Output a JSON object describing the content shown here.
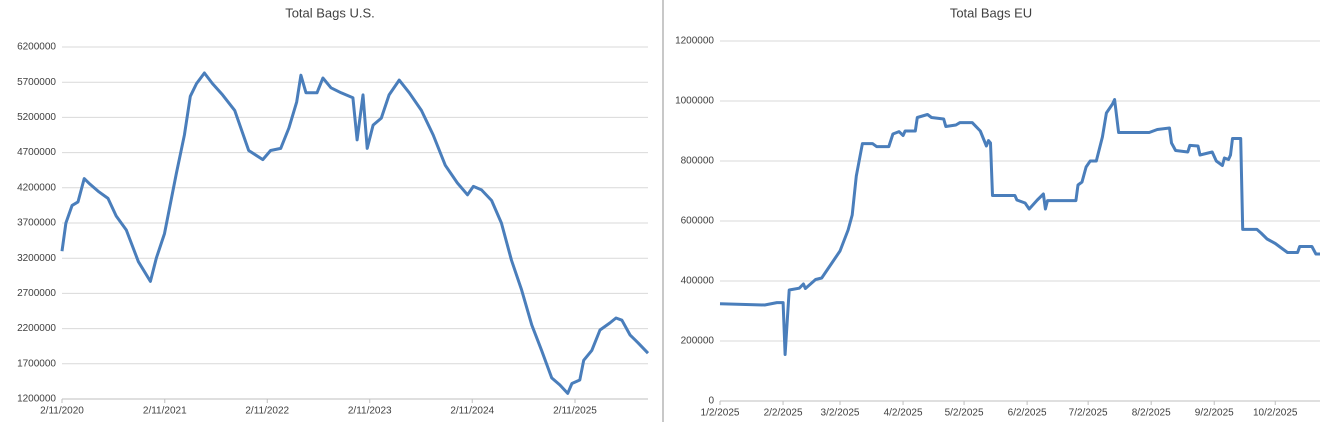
{
  "chart_data": [
    {
      "type": "line",
      "title": "Total Bags U.S.",
      "x": [
        "2/11/2020",
        "2/25/2020",
        "3/18/2020",
        "4/8/2020",
        "4/30/2020",
        "5/21/2020",
        "6/19/2020",
        "7/24/2020",
        "8/22/2020",
        "9/27/2020",
        "11/9/2020",
        "12/22/2020",
        "1/12/2021",
        "2/10/2021",
        "3/24/2021",
        "4/22/2021",
        "5/13/2021",
        "6/4/2021",
        "7/2/2021",
        "7/31/2021",
        "9/5/2021",
        "10/18/2021",
        "12/7/2021",
        "1/26/2022",
        "2/23/2022",
        "3/31/2022",
        "4/29/2022",
        "5/27/2022",
        "6/11/2022",
        "6/29/2022",
        "8/7/2022",
        "8/28/2022",
        "9/26/2022",
        "11/1/2022",
        "12/13/2022",
        "12/28/2022",
        "1/18/2023",
        "2/2/2023",
        "2/23/2023",
        "3/24/2023",
        "4/21/2023",
        "5/27/2023",
        "7/2/2023",
        "8/14/2023",
        "9/25/2023",
        "11/7/2023",
        "12/20/2023",
        "1/25/2024",
        "2/15/2024",
        "3/15/2024",
        "4/20/2024",
        "5/25/2024",
        "6/30/2024",
        "8/5/2024",
        "9/10/2024",
        "10/15/2024",
        "11/20/2024",
        "12/19/2024",
        "1/16/2025",
        "1/31/2025",
        "2/28/2025",
        "3/14/2025",
        "4/12/2025",
        "5/11/2025",
        "6/15/2025",
        "7/7/2025",
        "7/28/2025",
        "8/26/2025",
        "9/23/2025",
        "10/29/2025"
      ],
      "values": [
        3300000,
        3700000,
        3950000,
        4000000,
        4330000,
        4250000,
        4150000,
        4050000,
        3800000,
        3600000,
        3150000,
        2870000,
        3200000,
        3550000,
        4400000,
        4950000,
        5500000,
        5680000,
        5830000,
        5680000,
        5520000,
        5300000,
        4730000,
        4600000,
        4730000,
        4760000,
        5050000,
        5420000,
        5800000,
        5550000,
        5550000,
        5760000,
        5620000,
        5550000,
        5480000,
        4880000,
        5520000,
        4760000,
        5090000,
        5190000,
        5520000,
        5730000,
        5550000,
        5300000,
        4950000,
        4520000,
        4270000,
        4100000,
        4220000,
        4170000,
        4020000,
        3700000,
        3170000,
        2750000,
        2250000,
        1890000,
        1500000,
        1400000,
        1280000,
        1420000,
        1470000,
        1750000,
        1890000,
        2180000,
        2280000,
        2350000,
        2320000,
        2110000,
        2000000,
        1850000
      ],
      "color": "#4a7ebb",
      "xlim": [
        "2/11/2020",
        "10/29/2025"
      ],
      "xticks": [
        "2/11/2020",
        "2/11/2021",
        "2/11/2022",
        "2/11/2023",
        "2/11/2024",
        "2/11/2025"
      ],
      "ylim": [
        1200000,
        6200000
      ],
      "yticks": [
        1200000,
        1700000,
        2200000,
        2700000,
        3200000,
        3700000,
        4200000,
        4700000,
        5200000,
        5700000,
        6200000
      ],
      "grid": true
    },
    {
      "type": "line",
      "title": "Total Bags EU",
      "x": [
        "1/2/2025",
        "1/24/2025",
        "1/30/2025",
        "2/2/2025",
        "2/3/2025",
        "2/5/2025",
        "2/10/2025",
        "2/12/2025",
        "2/13/2025",
        "2/18/2025",
        "2/21/2025",
        "2/27/2025",
        "3/2/2025",
        "3/6/2025",
        "3/8/2025",
        "3/10/2025",
        "3/13/2025",
        "3/18/2025",
        "3/20/2025",
        "3/26/2025",
        "3/28/2025",
        "3/31/2025",
        "4/2/2025",
        "4/3/2025",
        "4/8/2025",
        "4/9/2025",
        "4/14/2025",
        "4/16/2025",
        "4/22/2025",
        "4/23/2025",
        "4/28/2025",
        "4/30/2025",
        "5/6/2025",
        "5/10/2025",
        "5/13/2025",
        "5/14/2025",
        "5/15/2025",
        "5/16/2025",
        "5/27/2025",
        "5/28/2025",
        "6/1/2025",
        "6/3/2025",
        "6/7/2025",
        "6/10/2025",
        "6/11/2025",
        "6/12/2025",
        "6/26/2025",
        "6/27/2025",
        "6/29/2025",
        "7/1/2025",
        "7/3/2025",
        "7/6/2025",
        "7/9/2025",
        "7/11/2025",
        "7/14/2025",
        "7/15/2025",
        "7/17/2025",
        "8/1/2025",
        "8/5/2025",
        "8/11/2025",
        "8/12/2025",
        "8/14/2025",
        "8/20/2025",
        "8/21/2025",
        "8/25/2025",
        "8/26/2025",
        "9/1/2025",
        "9/3/2025",
        "9/6/2025",
        "9/7/2025",
        "9/9/2025",
        "9/10/2025",
        "9/11/2025",
        "9/15/2025",
        "9/16/2025",
        "9/23/2025",
        "9/25/2025",
        "9/28/2025",
        "10/2/2025",
        "10/6/2025",
        "10/8/2025",
        "10/13/2025",
        "10/14/2025",
        "10/20/2025",
        "10/22/2025",
        "10/24/2025"
      ],
      "values": [
        324000,
        320000,
        328000,
        328000,
        155000,
        370000,
        376000,
        390000,
        375000,
        405000,
        410000,
        470000,
        500000,
        570000,
        620000,
        750000,
        858000,
        858000,
        848000,
        848000,
        890000,
        898000,
        885000,
        900000,
        900000,
        945000,
        955000,
        945000,
        940000,
        915000,
        920000,
        928000,
        928000,
        900000,
        850000,
        868000,
        860000,
        685000,
        685000,
        670000,
        660000,
        640000,
        670000,
        690000,
        640000,
        668000,
        668000,
        720000,
        730000,
        780000,
        800000,
        800000,
        880000,
        960000,
        990000,
        1005000,
        895000,
        895000,
        905000,
        910000,
        860000,
        835000,
        830000,
        852000,
        850000,
        820000,
        830000,
        800000,
        785000,
        810000,
        805000,
        820000,
        875000,
        875000,
        572000,
        572000,
        560000,
        540000,
        525000,
        505000,
        495000,
        495000,
        515000,
        515000,
        490000,
        490000
      ],
      "color": "#4a7ebb",
      "xlim": [
        "1/2/2025",
        "10/24/2025"
      ],
      "xticks": [
        "1/2/2025",
        "2/2/2025",
        "3/2/2025",
        "4/2/2025",
        "5/2/2025",
        "6/2/2025",
        "7/2/2025",
        "8/2/2025",
        "9/2/2025",
        "10/2/2025"
      ],
      "ylim": [
        0,
        1200000
      ],
      "yticks": [
        0,
        200000,
        400000,
        600000,
        800000,
        1000000,
        1200000
      ],
      "grid": true
    }
  ]
}
